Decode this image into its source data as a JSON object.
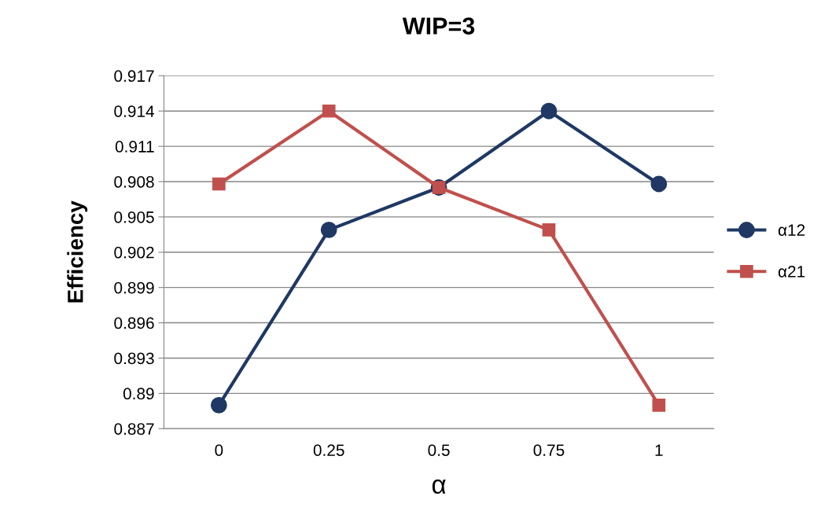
{
  "chart_data": {
    "type": "line",
    "title": "WIP=3",
    "xlabel": "α",
    "ylabel": "Efficiency",
    "categories": [
      "0",
      "0.25",
      "0.5",
      "0.75",
      "1"
    ],
    "series": [
      {
        "name": "α12",
        "color": "#1f3864",
        "marker": "circle",
        "values": [
          0.889,
          0.9039,
          0.9075,
          0.914,
          0.9078
        ]
      },
      {
        "name": "α21",
        "color": "#c0504d",
        "marker": "square",
        "values": [
          0.9078,
          0.914,
          0.9075,
          0.9039,
          0.889
        ]
      }
    ],
    "ylim": [
      0.887,
      0.917
    ],
    "yticks": [
      0.887,
      0.89,
      0.893,
      0.896,
      0.899,
      0.902,
      0.905,
      0.908,
      0.911,
      0.914,
      0.917
    ],
    "grid": "y",
    "legend": "right",
    "line_style": "solid"
  }
}
